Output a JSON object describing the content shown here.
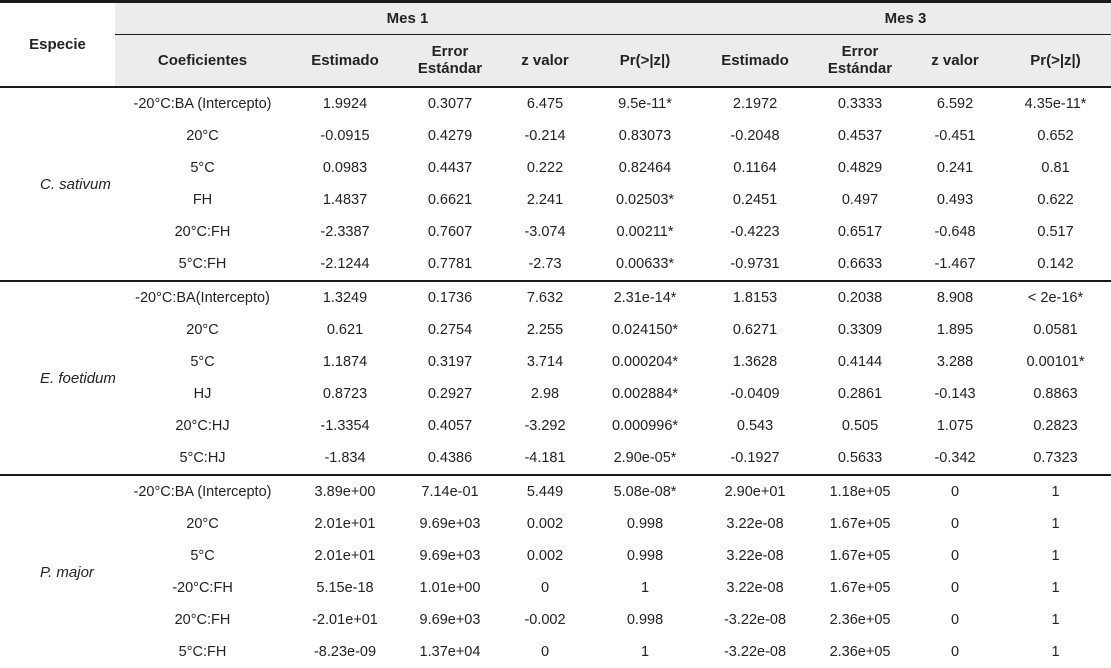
{
  "table": {
    "species_col_header": "Especie",
    "group_headers": [
      "Mes 1",
      "Mes 3"
    ],
    "sub_headers": [
      "Coeficientes",
      "Estimado",
      "Error Estándar",
      "z valor",
      "Pr(>|z|)",
      "Estimado",
      "Error Estándar",
      "z valor",
      "Pr(>|z|)"
    ],
    "sections": [
      {
        "species": "C. sativum",
        "rows": [
          [
            "-20°C:BA (Intercepto)",
            "1.9924",
            "0.3077",
            "6.475",
            "9.5e-11*",
            "2.1972",
            "0.3333",
            "6.592",
            "4.35e-11*"
          ],
          [
            "20°C",
            "-0.0915",
            "0.4279",
            "-0.214",
            "0.83073",
            "-0.2048",
            "0.4537",
            "-0.451",
            "0.652"
          ],
          [
            "5°C",
            "0.0983",
            "0.4437",
            "0.222",
            "0.82464",
            "0.1164",
            "0.4829",
            "0.241",
            "0.81"
          ],
          [
            "FH",
            "1.4837",
            "0.6621",
            "2.241",
            "0.02503*",
            "0.2451",
            "0.497",
            "0.493",
            "0.622"
          ],
          [
            "20°C:FH",
            "-2.3387",
            "0.7607",
            "-3.074",
            "0.00211*",
            "-0.4223",
            "0.6517",
            "-0.648",
            "0.517"
          ],
          [
            "5°C:FH",
            "-2.1244",
            "0.7781",
            "-2.73",
            "0.00633*",
            "-0.9731",
            "0.6633",
            "-1.467",
            "0.142"
          ]
        ]
      },
      {
        "species": "E. foetidum",
        "rows": [
          [
            "-20°C:BA(Intercepto)",
            "1.3249",
            "0.1736",
            "7.632",
            "2.31e-14*",
            "1.8153",
            "0.2038",
            "8.908",
            "< 2e-16*"
          ],
          [
            "20°C",
            "0.621",
            "0.2754",
            "2.255",
            "0.024150*",
            "0.6271",
            "0.3309",
            "1.895",
            "0.0581"
          ],
          [
            "5°C",
            "1.1874",
            "0.3197",
            "3.714",
            "0.000204*",
            "1.3628",
            "0.4144",
            "3.288",
            "0.00101*"
          ],
          [
            "HJ",
            "0.8723",
            "0.2927",
            "2.98",
            "0.002884*",
            "-0.0409",
            "0.2861",
            "-0.143",
            "0.8863"
          ],
          [
            "20°C:HJ",
            "-1.3354",
            "0.4057",
            "-3.292",
            "0.000996*",
            "0.543",
            "0.505",
            "1.075",
            "0.2823"
          ],
          [
            "5°C:HJ",
            "-1.834",
            "0.4386",
            "-4.181",
            "2.90e-05*",
            "-0.1927",
            "0.5633",
            "-0.342",
            "0.7323"
          ]
        ]
      },
      {
        "species": "P. major",
        "rows": [
          [
            "-20°C:BA (Intercepto)",
            "3.89e+00",
            "7.14e-01",
            "5.449",
            "5.08e-08*",
            "2.90e+01",
            "1.18e+05",
            "0",
            "1"
          ],
          [
            "20°C",
            "2.01e+01",
            "9.69e+03",
            "0.002",
            "0.998",
            "3.22e-08",
            "1.67e+05",
            "0",
            "1"
          ],
          [
            "5°C",
            "2.01e+01",
            "9.69e+03",
            "0.002",
            "0.998",
            "3.22e-08",
            "1.67e+05",
            "0",
            "1"
          ],
          [
            "-20°C:FH",
            "5.15e-18",
            "1.01e+00",
            "0",
            "1",
            "3.22e-08",
            "1.67e+05",
            "0",
            "1"
          ],
          [
            "20°C:FH",
            "-2.01e+01",
            "9.69e+03",
            "-0.002",
            "0.998",
            "-3.22e-08",
            "2.36e+05",
            "0",
            "1"
          ],
          [
            "5°C:FH",
            "-8.23e-09",
            "1.37e+04",
            "0",
            "1",
            "-3.22e-08",
            "2.36e+05",
            "0",
            "1"
          ]
        ]
      }
    ],
    "colors": {
      "text": "#232323",
      "border": "#1a1a1a",
      "header_bg": "#ececec"
    }
  }
}
